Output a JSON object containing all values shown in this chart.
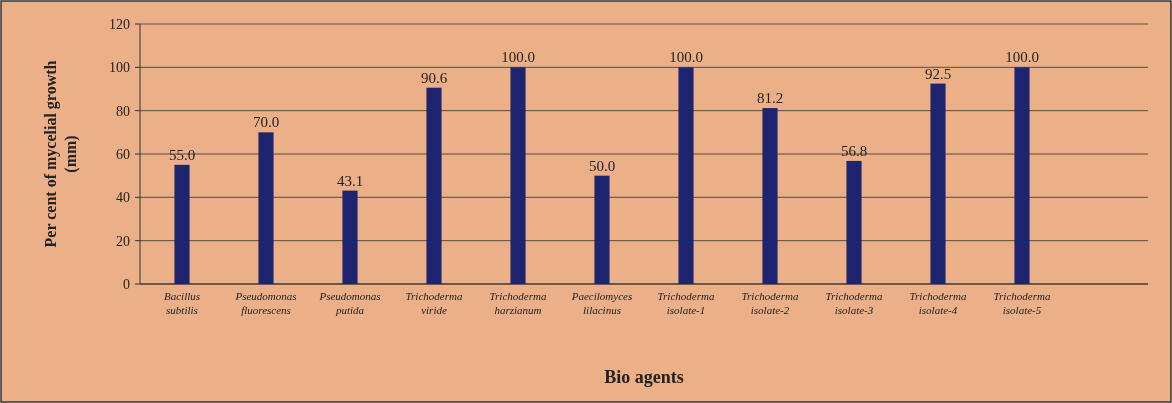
{
  "chart_data": {
    "type": "bar",
    "xlabel": "Bio agents",
    "ylabel": "Per cent of mycelial growth (mm)",
    "categories": [
      "Bacillus subtilis",
      "Pseudomonas fluorescens",
      "Pseudomonas putida",
      "Trichoderma viride",
      "Trichoderma harzianum",
      "Paecilomyces lilacinus",
      "Trichoderma isolate-1",
      "Trichoderma isolate-2",
      "Trichoderma isolate-3",
      "Trichoderma isolate-4",
      "Trichoderma isolate-5",
      null
    ],
    "values": [
      55.0,
      70.0,
      43.1,
      90.6,
      100.0,
      50.0,
      100.0,
      81.2,
      56.8,
      92.5,
      100.0,
      null
    ],
    "value_labels": [
      "55.0",
      "70.0",
      "43.1",
      "90.6",
      "100.0",
      "50.0",
      "100.0",
      "81.2",
      "56.8",
      "92.5",
      "100.0",
      null
    ],
    "color": "#1f2470",
    "ylim": [
      0,
      120
    ],
    "yticks": [
      0,
      20,
      40,
      60,
      80,
      100,
      120
    ],
    "grid": "y"
  }
}
